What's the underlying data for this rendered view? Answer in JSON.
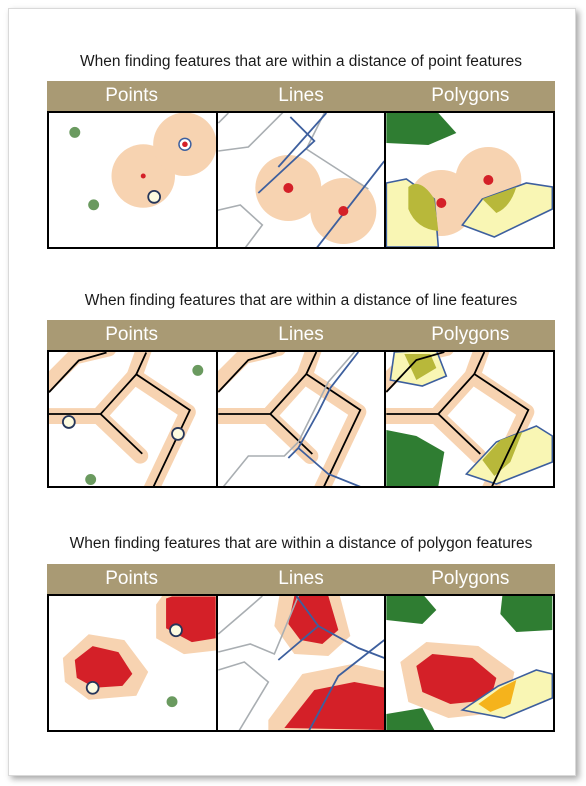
{
  "sections": [
    {
      "title": "When finding features that are within a distance of point features",
      "columns": [
        "Points",
        "Lines",
        "Polygons"
      ]
    },
    {
      "title": "When finding features that are within a distance of line features",
      "columns": [
        "Points",
        "Lines",
        "Polygons"
      ]
    },
    {
      "title": "When finding features that are within a distance of polygon features",
      "columns": [
        "Points",
        "Lines",
        "Polygons"
      ]
    }
  ],
  "colors": {
    "header": "#a99a74",
    "buffer": "#f7d3b1",
    "point_feature": "#d42028",
    "green_point": "#6a9a5f",
    "green_polygon": "#2f7d32",
    "yellow_polygon": "#f9f6b4",
    "selected_overlap": "#b8b83a",
    "blue_line": "#3d5f9e",
    "gray_line": "#a9aeb2",
    "red_polygon": "#d42028",
    "orange_overlap": "#f5b31c"
  }
}
